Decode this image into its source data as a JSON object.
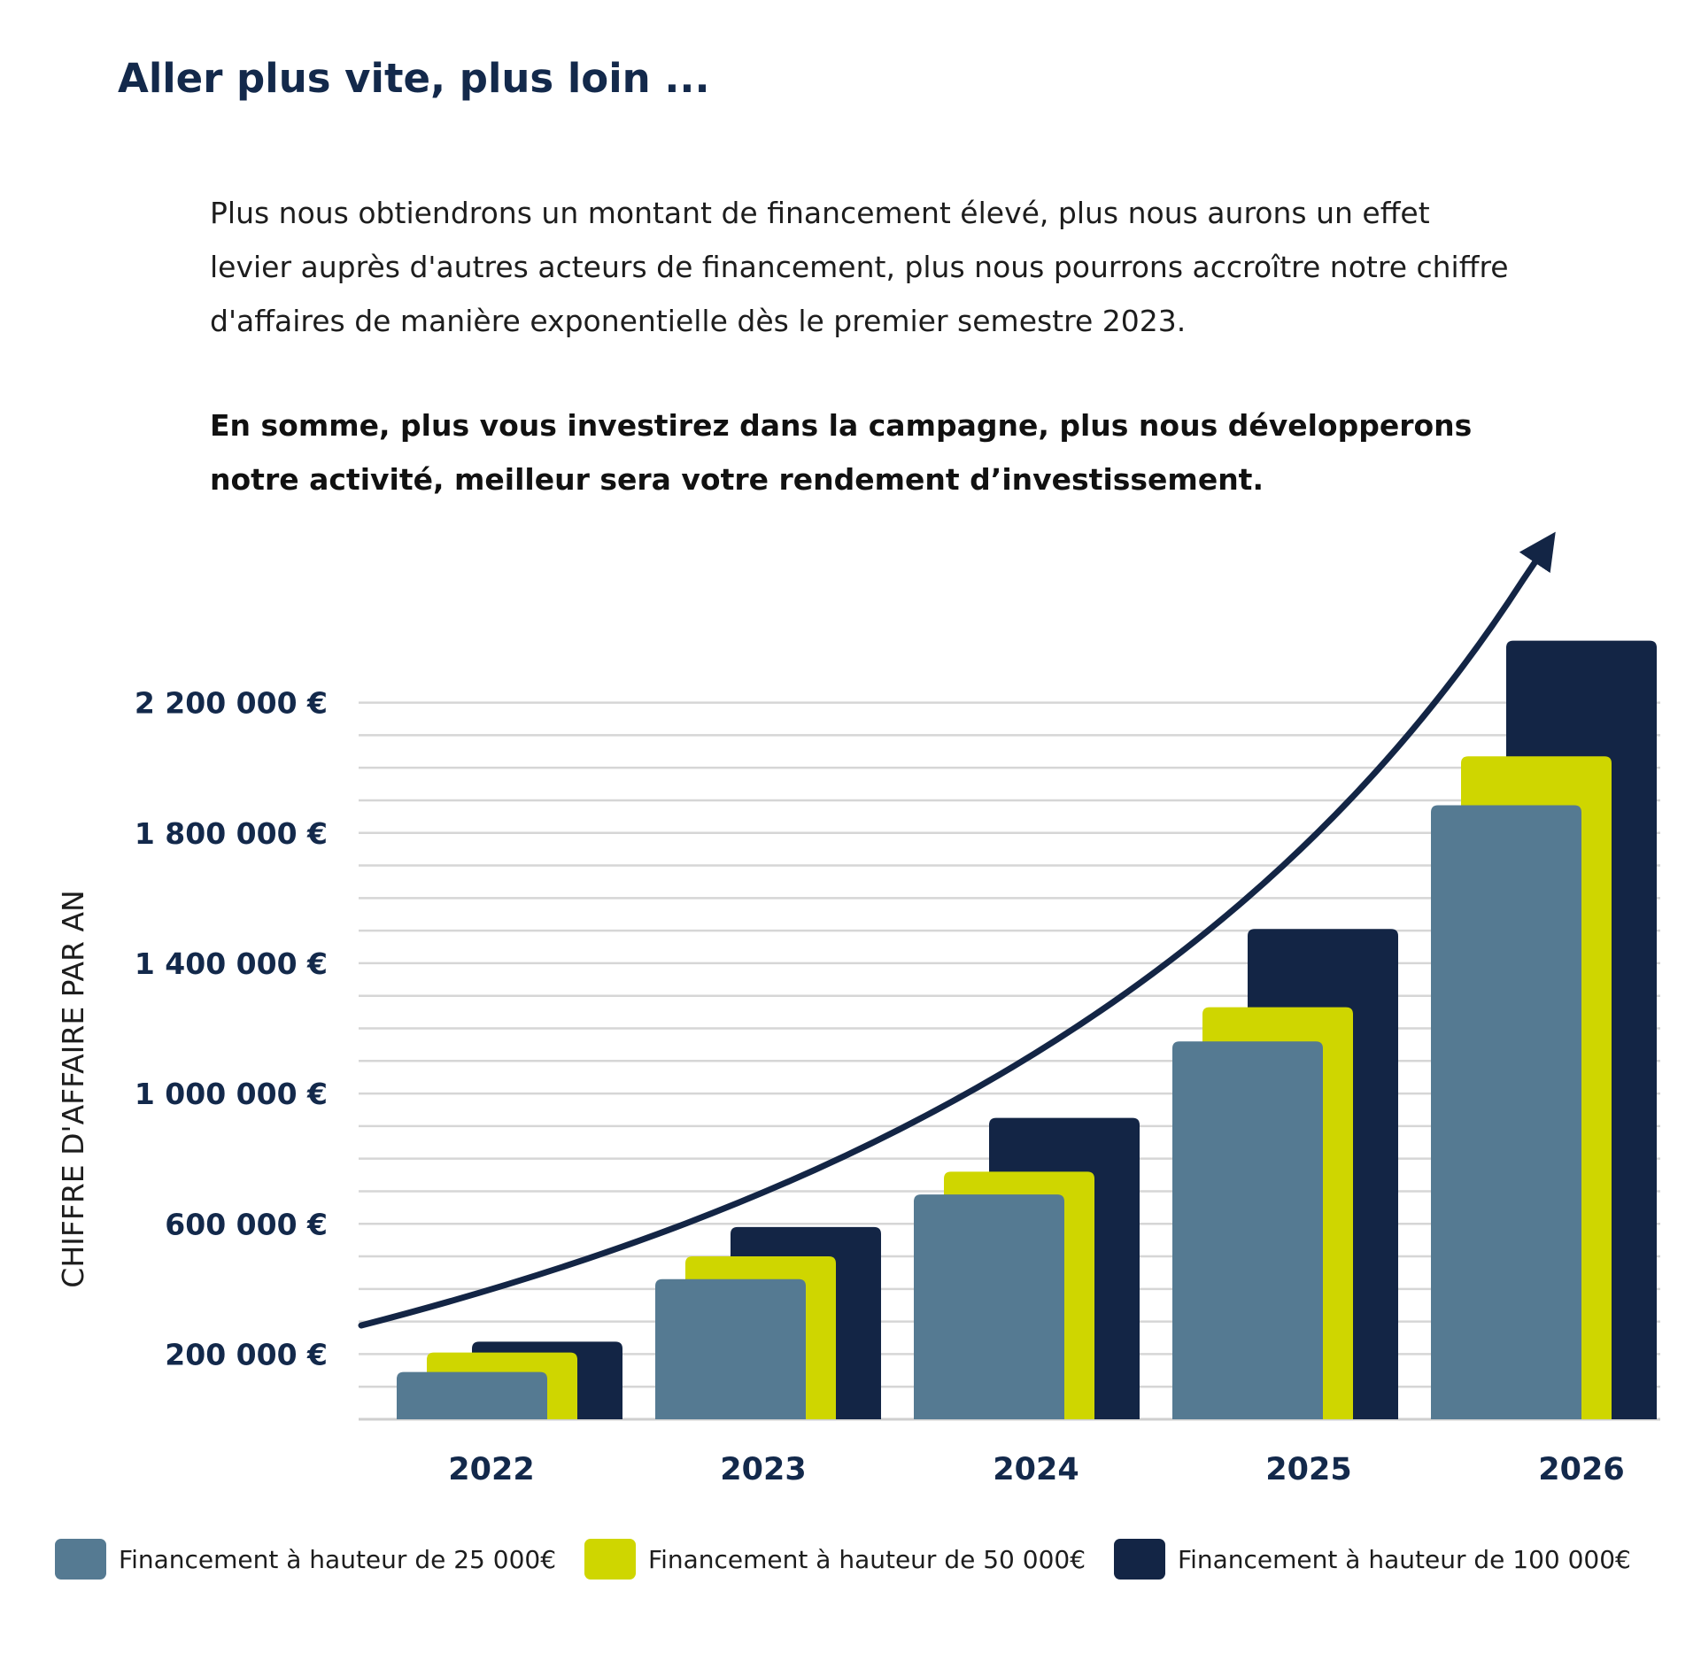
{
  "title": "Aller plus vite, plus loin ...",
  "intro": "Plus nous obtiendrons un montant de financement élevé, plus nous aurons un effet levier auprès d'autres acteurs de financement, plus nous pourrons accroître notre chiffre d'affaires de manière exponentielle dès le premier semestre 2023.",
  "summary": "En somme, plus vous investirez dans la campagne, plus nous développerons notre activité, meilleur sera votre rendement d’investissement.",
  "chart_data": {
    "type": "bar",
    "ylabel": "CHIFFRE D'AFFAIRE PAR AN",
    "xlabel": "",
    "ylim": [
      0,
      2400000
    ],
    "yticks": [
      {
        "value": 200000,
        "label": "200 000 €"
      },
      {
        "value": 600000,
        "label": "600 000 €"
      },
      {
        "value": 1000000,
        "label": "1 000 000 €"
      },
      {
        "value": 1400000,
        "label": "1 400 000 €"
      },
      {
        "value": 1800000,
        "label": "1 800 000 €"
      },
      {
        "value": 2200000,
        "label": "2 200 000 €"
      }
    ],
    "categories": [
      "2022",
      "2023",
      "2024",
      "2025",
      "2026"
    ],
    "series": [
      {
        "name": "Financement à hauteur de 25 000€",
        "color": "#557a92",
        "values": [
          145000,
          430000,
          690000,
          1160000,
          1885000
        ]
      },
      {
        "name": "Financement à hauteur de 50 000€",
        "color": "#cfd600",
        "values": [
          205000,
          500000,
          760000,
          1265000,
          2035000
        ]
      },
      {
        "name": "Financement à hauteur de 100 000€",
        "color": "#132545",
        "values": [
          238000,
          590000,
          925000,
          1505000,
          2390000
        ]
      }
    ],
    "grid": true,
    "trend_arrow": true,
    "legend_position": "bottom"
  }
}
